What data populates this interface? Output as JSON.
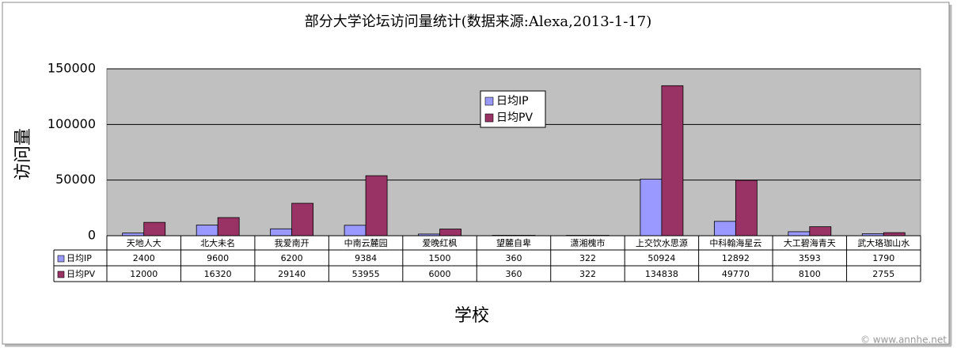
{
  "chart_data": {
    "type": "bar",
    "title": "部分大学论坛访问量统计(数据来源:Alexa,2013-1-17)",
    "y_label": "访问量",
    "x_label": "学校",
    "watermark": "© www.annhe.net",
    "categories": [
      "天地人大",
      "北大未名",
      "我爱南开",
      "中南云麓园",
      "爱晚红枫",
      "望麓自卑",
      "潇湘槐市",
      "上交饮水思源",
      "中科翰海星云",
      "大工碧海青天",
      "武大珞珈山水"
    ],
    "series": [
      {
        "name": "日均IP",
        "color": "#9999ff",
        "values": [
          2400,
          9600,
          6200,
          9384,
          1500,
          360,
          322,
          50924,
          12892,
          3593,
          1790
        ]
      },
      {
        "name": "日均PV",
        "color": "#993366",
        "values": [
          12000,
          16320,
          29140,
          53955,
          6000,
          360,
          322,
          134838,
          49770,
          8100,
          2755
        ]
      }
    ],
    "ylim": [
      0,
      150000
    ],
    "yticks": [
      0,
      50000,
      100000,
      150000
    ],
    "grid": true,
    "legend": "top-center",
    "plot_background": "#c0c0c0"
  }
}
